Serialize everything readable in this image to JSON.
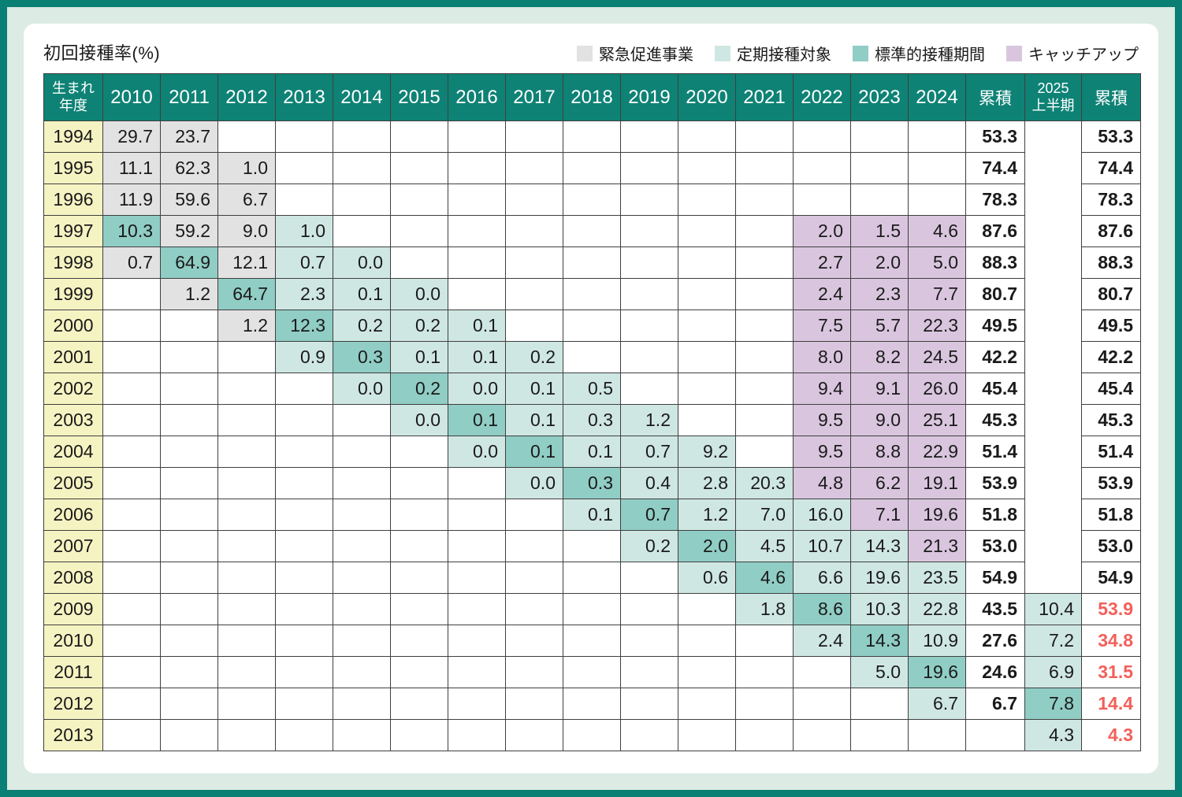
{
  "title": "初回接種率(%)",
  "legend": [
    {
      "key": "g",
      "label": "緊急促進事業",
      "color": "#e2e2e2"
    },
    {
      "key": "l",
      "label": "定期接種対象",
      "color": "#cfe7e3"
    },
    {
      "key": "d",
      "label": "標準的接種期間",
      "color": "#90cdc5"
    },
    {
      "key": "p",
      "label": "キャッチアップ",
      "color": "#d9c6de"
    }
  ],
  "colors": {
    "frame_teal": "#0a7f73",
    "mat_mint": "#dcebe4",
    "header_teal": "#0e8275",
    "row_header_yellow": "#f6f3c3",
    "red_text": "#f2605a",
    "grid_border": "#3f3f3f"
  },
  "chart_data": {
    "type": "table",
    "title": "初回接種率(%)",
    "row_header_label": "生まれ年度",
    "row_header_lines": [
      "生まれ",
      "年度"
    ],
    "year_columns": [
      "2010",
      "2011",
      "2012",
      "2013",
      "2014",
      "2015",
      "2016",
      "2017",
      "2018",
      "2019",
      "2020",
      "2021",
      "2022",
      "2023",
      "2024"
    ],
    "cumulative_label": "累積",
    "h2025_label": "2025上半期",
    "h2025_lines": [
      "2025",
      "上半期"
    ],
    "color_legend_keys": {
      "g": "緊急促進事業",
      "l": "定期接種対象",
      "d": "標準的接種期間",
      "p": "キャッチアップ"
    },
    "rows": [
      {
        "birth_year": "1994",
        "cells": [
          {
            "v": "29.7",
            "c": "g"
          },
          {
            "v": "23.7",
            "c": "g"
          },
          null,
          null,
          null,
          null,
          null,
          null,
          null,
          null,
          null,
          null,
          null,
          null,
          null
        ],
        "cumulative": "53.3",
        "h1_2025": null,
        "cumulative_2025": "53.3",
        "cumulative_2025_red": false
      },
      {
        "birth_year": "1995",
        "cells": [
          {
            "v": "11.1",
            "c": "g"
          },
          {
            "v": "62.3",
            "c": "g"
          },
          {
            "v": "1.0",
            "c": "g"
          },
          null,
          null,
          null,
          null,
          null,
          null,
          null,
          null,
          null,
          null,
          null,
          null
        ],
        "cumulative": "74.4",
        "h1_2025": null,
        "cumulative_2025": "74.4",
        "cumulative_2025_red": false
      },
      {
        "birth_year": "1996",
        "cells": [
          {
            "v": "11.9",
            "c": "g"
          },
          {
            "v": "59.6",
            "c": "g"
          },
          {
            "v": "6.7",
            "c": "g"
          },
          null,
          null,
          null,
          null,
          null,
          null,
          null,
          null,
          null,
          null,
          null,
          null
        ],
        "cumulative": "78.3",
        "h1_2025": null,
        "cumulative_2025": "78.3",
        "cumulative_2025_red": false
      },
      {
        "birth_year": "1997",
        "cells": [
          {
            "v": "10.3",
            "c": "d"
          },
          {
            "v": "59.2",
            "c": "g"
          },
          {
            "v": "9.0",
            "c": "g"
          },
          {
            "v": "1.0",
            "c": "l"
          },
          null,
          null,
          null,
          null,
          null,
          null,
          null,
          null,
          {
            "v": "2.0",
            "c": "p"
          },
          {
            "v": "1.5",
            "c": "p"
          },
          {
            "v": "4.6",
            "c": "p"
          }
        ],
        "cumulative": "87.6",
        "h1_2025": null,
        "cumulative_2025": "87.6",
        "cumulative_2025_red": false
      },
      {
        "birth_year": "1998",
        "cells": [
          {
            "v": "0.7",
            "c": "g"
          },
          {
            "v": "64.9",
            "c": "d"
          },
          {
            "v": "12.1",
            "c": "g"
          },
          {
            "v": "0.7",
            "c": "l"
          },
          {
            "v": "0.0",
            "c": "l"
          },
          null,
          null,
          null,
          null,
          null,
          null,
          null,
          {
            "v": "2.7",
            "c": "p"
          },
          {
            "v": "2.0",
            "c": "p"
          },
          {
            "v": "5.0",
            "c": "p"
          }
        ],
        "cumulative": "88.3",
        "h1_2025": null,
        "cumulative_2025": "88.3",
        "cumulative_2025_red": false
      },
      {
        "birth_year": "1999",
        "cells": [
          null,
          {
            "v": "1.2",
            "c": "g"
          },
          {
            "v": "64.7",
            "c": "d"
          },
          {
            "v": "2.3",
            "c": "l"
          },
          {
            "v": "0.1",
            "c": "l"
          },
          {
            "v": "0.0",
            "c": "l"
          },
          null,
          null,
          null,
          null,
          null,
          null,
          {
            "v": "2.4",
            "c": "p"
          },
          {
            "v": "2.3",
            "c": "p"
          },
          {
            "v": "7.7",
            "c": "p"
          }
        ],
        "cumulative": "80.7",
        "h1_2025": null,
        "cumulative_2025": "80.7",
        "cumulative_2025_red": false
      },
      {
        "birth_year": "2000",
        "cells": [
          null,
          null,
          {
            "v": "1.2",
            "c": "g"
          },
          {
            "v": "12.3",
            "c": "d"
          },
          {
            "v": "0.2",
            "c": "l"
          },
          {
            "v": "0.2",
            "c": "l"
          },
          {
            "v": "0.1",
            "c": "l"
          },
          null,
          null,
          null,
          null,
          null,
          {
            "v": "7.5",
            "c": "p"
          },
          {
            "v": "5.7",
            "c": "p"
          },
          {
            "v": "22.3",
            "c": "p"
          }
        ],
        "cumulative": "49.5",
        "h1_2025": null,
        "cumulative_2025": "49.5",
        "cumulative_2025_red": false
      },
      {
        "birth_year": "2001",
        "cells": [
          null,
          null,
          null,
          {
            "v": "0.9",
            "c": "l"
          },
          {
            "v": "0.3",
            "c": "d"
          },
          {
            "v": "0.1",
            "c": "l"
          },
          {
            "v": "0.1",
            "c": "l"
          },
          {
            "v": "0.2",
            "c": "l"
          },
          null,
          null,
          null,
          null,
          {
            "v": "8.0",
            "c": "p"
          },
          {
            "v": "8.2",
            "c": "p"
          },
          {
            "v": "24.5",
            "c": "p"
          }
        ],
        "cumulative": "42.2",
        "h1_2025": null,
        "cumulative_2025": "42.2",
        "cumulative_2025_red": false
      },
      {
        "birth_year": "2002",
        "cells": [
          null,
          null,
          null,
          null,
          {
            "v": "0.0",
            "c": "l"
          },
          {
            "v": "0.2",
            "c": "d"
          },
          {
            "v": "0.0",
            "c": "l"
          },
          {
            "v": "0.1",
            "c": "l"
          },
          {
            "v": "0.5",
            "c": "l"
          },
          null,
          null,
          null,
          {
            "v": "9.4",
            "c": "p"
          },
          {
            "v": "9.1",
            "c": "p"
          },
          {
            "v": "26.0",
            "c": "p"
          }
        ],
        "cumulative": "45.4",
        "h1_2025": null,
        "cumulative_2025": "45.4",
        "cumulative_2025_red": false
      },
      {
        "birth_year": "2003",
        "cells": [
          null,
          null,
          null,
          null,
          null,
          {
            "v": "0.0",
            "c": "l"
          },
          {
            "v": "0.1",
            "c": "d"
          },
          {
            "v": "0.1",
            "c": "l"
          },
          {
            "v": "0.3",
            "c": "l"
          },
          {
            "v": "1.2",
            "c": "l"
          },
          null,
          null,
          {
            "v": "9.5",
            "c": "p"
          },
          {
            "v": "9.0",
            "c": "p"
          },
          {
            "v": "25.1",
            "c": "p"
          }
        ],
        "cumulative": "45.3",
        "h1_2025": null,
        "cumulative_2025": "45.3",
        "cumulative_2025_red": false
      },
      {
        "birth_year": "2004",
        "cells": [
          null,
          null,
          null,
          null,
          null,
          null,
          {
            "v": "0.0",
            "c": "l"
          },
          {
            "v": "0.1",
            "c": "d"
          },
          {
            "v": "0.1",
            "c": "l"
          },
          {
            "v": "0.7",
            "c": "l"
          },
          {
            "v": "9.2",
            "c": "l"
          },
          null,
          {
            "v": "9.5",
            "c": "p"
          },
          {
            "v": "8.8",
            "c": "p"
          },
          {
            "v": "22.9",
            "c": "p"
          }
        ],
        "cumulative": "51.4",
        "h1_2025": null,
        "cumulative_2025": "51.4",
        "cumulative_2025_red": false
      },
      {
        "birth_year": "2005",
        "cells": [
          null,
          null,
          null,
          null,
          null,
          null,
          null,
          {
            "v": "0.0",
            "c": "l"
          },
          {
            "v": "0.3",
            "c": "d"
          },
          {
            "v": "0.4",
            "c": "l"
          },
          {
            "v": "2.8",
            "c": "l"
          },
          {
            "v": "20.3",
            "c": "l"
          },
          {
            "v": "4.8",
            "c": "p"
          },
          {
            "v": "6.2",
            "c": "p"
          },
          {
            "v": "19.1",
            "c": "p"
          }
        ],
        "cumulative": "53.9",
        "h1_2025": null,
        "cumulative_2025": "53.9",
        "cumulative_2025_red": false
      },
      {
        "birth_year": "2006",
        "cells": [
          null,
          null,
          null,
          null,
          null,
          null,
          null,
          null,
          {
            "v": "0.1",
            "c": "l"
          },
          {
            "v": "0.7",
            "c": "d"
          },
          {
            "v": "1.2",
            "c": "l"
          },
          {
            "v": "7.0",
            "c": "l"
          },
          {
            "v": "16.0",
            "c": "l"
          },
          {
            "v": "7.1",
            "c": "p"
          },
          {
            "v": "19.6",
            "c": "p"
          }
        ],
        "cumulative": "51.8",
        "h1_2025": null,
        "cumulative_2025": "51.8",
        "cumulative_2025_red": false
      },
      {
        "birth_year": "2007",
        "cells": [
          null,
          null,
          null,
          null,
          null,
          null,
          null,
          null,
          null,
          {
            "v": "0.2",
            "c": "l"
          },
          {
            "v": "2.0",
            "c": "d"
          },
          {
            "v": "4.5",
            "c": "l"
          },
          {
            "v": "10.7",
            "c": "l"
          },
          {
            "v": "14.3",
            "c": "l"
          },
          {
            "v": "21.3",
            "c": "p"
          }
        ],
        "cumulative": "53.0",
        "h1_2025": null,
        "cumulative_2025": "53.0",
        "cumulative_2025_red": false
      },
      {
        "birth_year": "2008",
        "cells": [
          null,
          null,
          null,
          null,
          null,
          null,
          null,
          null,
          null,
          null,
          {
            "v": "0.6",
            "c": "l"
          },
          {
            "v": "4.6",
            "c": "d"
          },
          {
            "v": "6.6",
            "c": "l"
          },
          {
            "v": "19.6",
            "c": "l"
          },
          {
            "v": "23.5",
            "c": "l"
          }
        ],
        "cumulative": "54.9",
        "h1_2025": null,
        "cumulative_2025": "54.9",
        "cumulative_2025_red": false
      },
      {
        "birth_year": "2009",
        "cells": [
          null,
          null,
          null,
          null,
          null,
          null,
          null,
          null,
          null,
          null,
          null,
          {
            "v": "1.8",
            "c": "l"
          },
          {
            "v": "8.6",
            "c": "d"
          },
          {
            "v": "10.3",
            "c": "l"
          },
          {
            "v": "22.8",
            "c": "l"
          }
        ],
        "cumulative": "43.5",
        "h1_2025": {
          "v": "10.4",
          "c": "l"
        },
        "cumulative_2025": "53.9",
        "cumulative_2025_red": true
      },
      {
        "birth_year": "2010",
        "cells": [
          null,
          null,
          null,
          null,
          null,
          null,
          null,
          null,
          null,
          null,
          null,
          null,
          {
            "v": "2.4",
            "c": "l"
          },
          {
            "v": "14.3",
            "c": "d"
          },
          {
            "v": "10.9",
            "c": "l"
          }
        ],
        "cumulative": "27.6",
        "h1_2025": {
          "v": "7.2",
          "c": "l"
        },
        "cumulative_2025": "34.8",
        "cumulative_2025_red": true
      },
      {
        "birth_year": "2011",
        "cells": [
          null,
          null,
          null,
          null,
          null,
          null,
          null,
          null,
          null,
          null,
          null,
          null,
          null,
          {
            "v": "5.0",
            "c": "l"
          },
          {
            "v": "19.6",
            "c": "d"
          }
        ],
        "cumulative": "24.6",
        "h1_2025": {
          "v": "6.9",
          "c": "l"
        },
        "cumulative_2025": "31.5",
        "cumulative_2025_red": true
      },
      {
        "birth_year": "2012",
        "cells": [
          null,
          null,
          null,
          null,
          null,
          null,
          null,
          null,
          null,
          null,
          null,
          null,
          null,
          null,
          {
            "v": "6.7",
            "c": "l"
          }
        ],
        "cumulative": "6.7",
        "h1_2025": {
          "v": "7.8",
          "c": "d"
        },
        "cumulative_2025": "14.4",
        "cumulative_2025_red": true
      },
      {
        "birth_year": "2013",
        "cells": [
          null,
          null,
          null,
          null,
          null,
          null,
          null,
          null,
          null,
          null,
          null,
          null,
          null,
          null,
          null
        ],
        "cumulative": "",
        "h1_2025": {
          "v": "4.3",
          "c": "l"
        },
        "cumulative_2025": "4.3",
        "cumulative_2025_red": true
      }
    ]
  }
}
